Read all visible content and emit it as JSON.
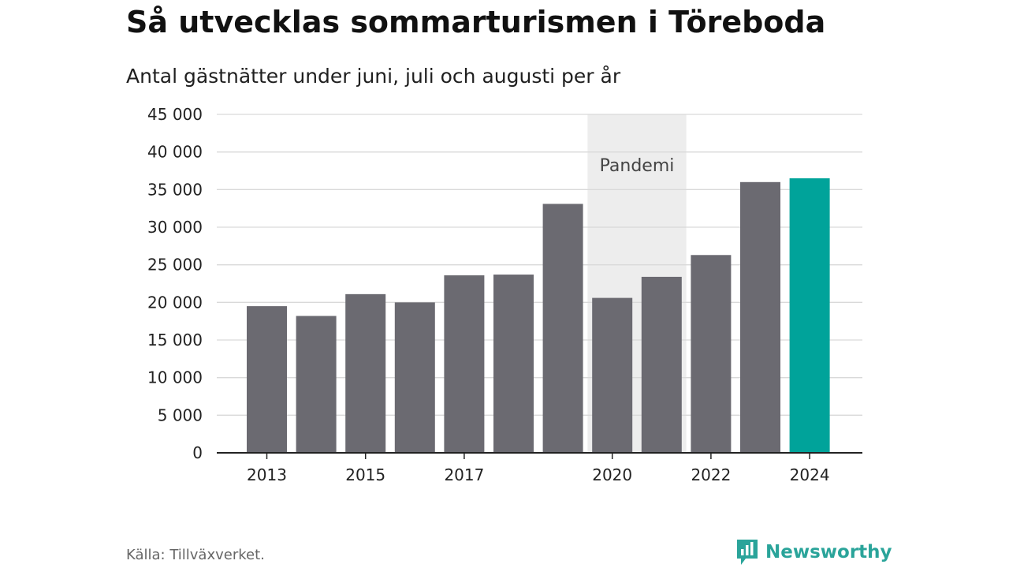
{
  "title": "Så utvecklas sommarturismen i Töreboda",
  "subtitle": "Antal gästnätter under juni, juli och augusti per år",
  "source": "Källa: Tillväxverket.",
  "brand": {
    "name": "Newsworthy",
    "icon": "newsworthy-logo-icon",
    "color": "#2aa49a"
  },
  "chart_data": {
    "type": "bar",
    "title": "Så utvecklas sommarturismen i Töreboda",
    "subtitle": "Antal gästnätter under juni, juli och augusti per år",
    "categories": [
      "2013",
      "2014",
      "2015",
      "2016",
      "2017",
      "2018",
      "2019",
      "2020",
      "2021",
      "2022",
      "2023",
      "2024"
    ],
    "values": [
      19500,
      18200,
      21100,
      20000,
      23600,
      23700,
      33100,
      20600,
      23400,
      26300,
      36000,
      36500
    ],
    "x_tick_labels": [
      "2013",
      "",
      "2015",
      "",
      "2017",
      "",
      "",
      "2020",
      "",
      "2022",
      "",
      "2024"
    ],
    "y_ticks": [
      0,
      5000,
      10000,
      15000,
      20000,
      25000,
      30000,
      35000,
      40000,
      45000
    ],
    "y_tick_labels": [
      "0",
      "5 000",
      "10 000",
      "15 000",
      "20 000",
      "25 000",
      "30 000",
      "35 000",
      "40 000",
      "45 000"
    ],
    "ylim": [
      0,
      45000
    ],
    "xlabel": "",
    "ylabel": "",
    "grid": true,
    "bar_color": "#6b6a71",
    "highlight_color": "#00a39a",
    "highlight_category": "2024",
    "annotation": {
      "label": "Pandemi",
      "from": "2020",
      "to": "2021",
      "color": "#ededed"
    }
  }
}
